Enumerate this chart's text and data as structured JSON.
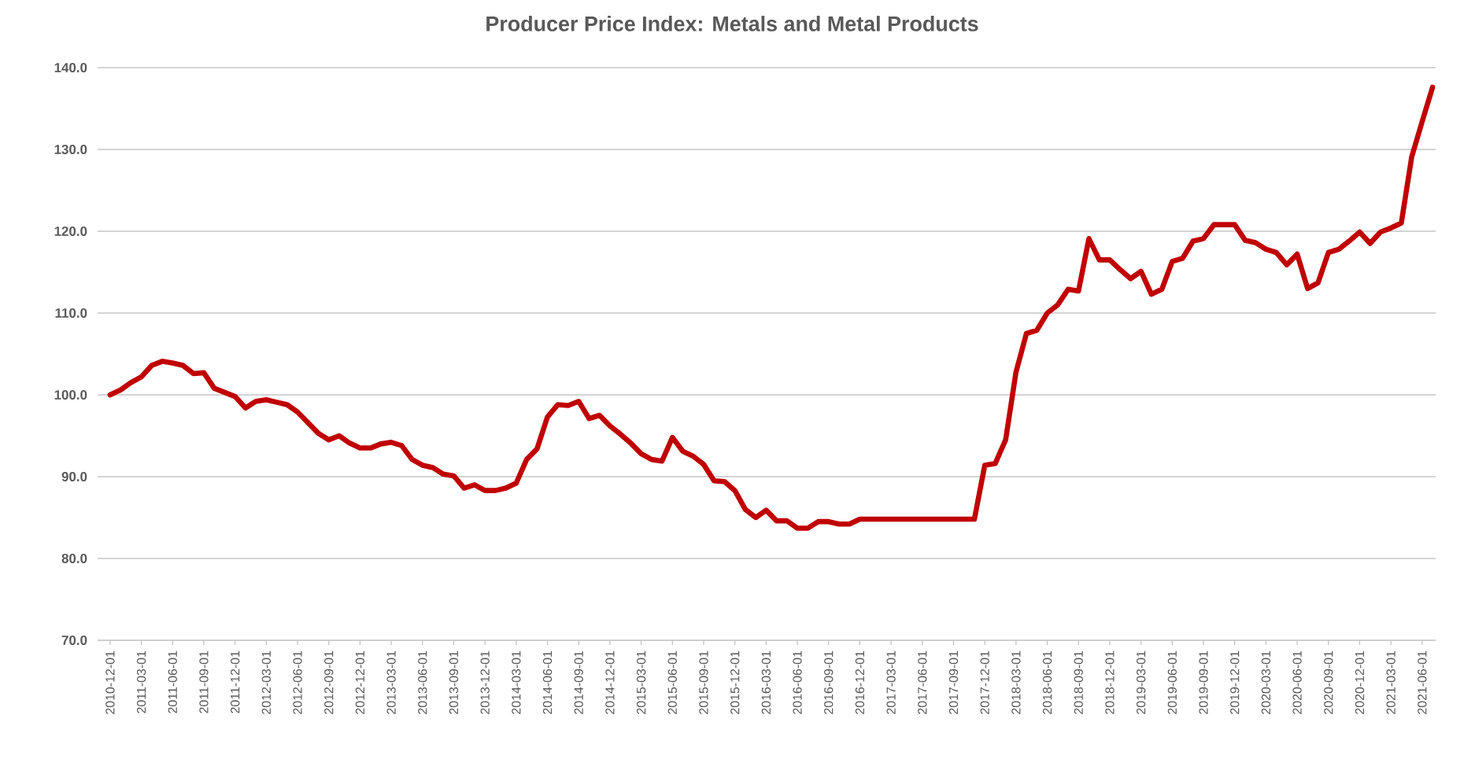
{
  "chart_data": {
    "type": "line",
    "title": "Producer Price Index: Metals and Metal Products",
    "categories": [
      "2010-12-01",
      null,
      null,
      "2011-03-01",
      null,
      null,
      "2011-06-01",
      null,
      null,
      "2011-09-01",
      null,
      null,
      "2011-12-01",
      null,
      null,
      "2012-03-01",
      null,
      null,
      "2012-06-01",
      null,
      null,
      "2012-09-01",
      null,
      null,
      "2012-12-01",
      null,
      null,
      "2013-03-01",
      null,
      null,
      "2013-06-01",
      null,
      null,
      "2013-09-01",
      null,
      null,
      "2013-12-01",
      null,
      null,
      "2014-03-01",
      null,
      null,
      "2014-06-01",
      null,
      null,
      "2014-09-01",
      null,
      null,
      "2014-12-01",
      null,
      null,
      "2015-03-01",
      null,
      null,
      "2015-06-01",
      null,
      null,
      "2015-09-01",
      null,
      null,
      "2015-12-01",
      null,
      null,
      "2016-03-01",
      null,
      null,
      "2016-06-01",
      null,
      null,
      "2016-09-01",
      null,
      null,
      "2016-12-01",
      null,
      null,
      "2017-03-01",
      null,
      null,
      "2017-06-01",
      null,
      null,
      "2017-09-01",
      null,
      null,
      "2017-12-01",
      null,
      null,
      "2018-03-01",
      null,
      null,
      "2018-06-01",
      null,
      null,
      "2018-09-01",
      null,
      null,
      "2018-12-01",
      null,
      null,
      "2019-03-01",
      null,
      null,
      "2019-06-01",
      null,
      null,
      "2019-09-01",
      null,
      null,
      "2019-12-01",
      null,
      null,
      "2020-03-01",
      null,
      null,
      "2020-06-01",
      null,
      null,
      "2020-09-01",
      null,
      null,
      "2020-12-01",
      null,
      null,
      "2021-03-01",
      null,
      null,
      "2021-06-01",
      null
    ],
    "values": [
      100.0,
      100.6,
      101.5,
      102.2,
      103.6,
      104.1,
      103.9,
      103.6,
      102.6,
      102.7,
      100.8,
      100.3,
      99.8,
      98.4,
      99.2,
      99.4,
      99.1,
      98.8,
      97.9,
      96.6,
      95.3,
      94.5,
      95.0,
      94.1,
      93.5,
      93.5,
      94.0,
      94.2,
      93.8,
      92.1,
      91.4,
      91.1,
      90.3,
      90.1,
      88.6,
      89.0,
      88.3,
      88.3,
      88.6,
      89.2,
      92.1,
      93.4,
      97.3,
      98.8,
      98.7,
      99.2,
      97.1,
      97.5,
      96.2,
      95.2,
      94.1,
      92.8,
      92.1,
      91.9,
      94.8,
      93.1,
      92.5,
      91.5,
      89.5,
      89.4,
      88.3,
      86.0,
      85.0,
      85.9,
      84.6,
      84.6,
      83.7,
      83.7,
      84.5,
      84.5,
      84.2,
      84.2,
      84.8,
      84.8,
      84.8,
      84.8,
      84.8,
      84.8,
      84.8,
      84.8,
      84.8,
      84.8,
      84.8,
      84.8,
      91.4,
      91.6,
      94.5,
      102.8,
      107.5,
      107.9,
      110.0,
      111.0,
      112.9,
      112.7,
      119.1,
      116.5,
      116.5,
      115.3,
      114.2,
      115.1,
      112.3,
      112.9,
      116.3,
      116.7,
      118.8,
      119.1,
      120.8,
      120.8,
      120.8,
      118.9,
      118.6,
      117.8,
      117.4,
      115.9,
      117.2,
      113.0,
      113.7,
      117.4,
      117.8,
      118.8,
      119.9,
      118.5,
      119.9,
      120.4,
      121.0,
      129.1,
      133.4,
      137.6
    ],
    "color": "#c00000",
    "ylim": [
      70,
      140
    ],
    "yticks": [
      {
        "value": 70,
        "label": "70.0"
      },
      {
        "value": 80,
        "label": "80.0"
      },
      {
        "value": 90,
        "label": "90.0"
      },
      {
        "value": 100,
        "label": "100.0"
      },
      {
        "value": 110,
        "label": "110.0"
      },
      {
        "value": 120,
        "label": "120.0"
      },
      {
        "value": 130,
        "label": "130.0"
      },
      {
        "value": 140,
        "label": "140.0"
      }
    ],
    "grid": "y"
  }
}
